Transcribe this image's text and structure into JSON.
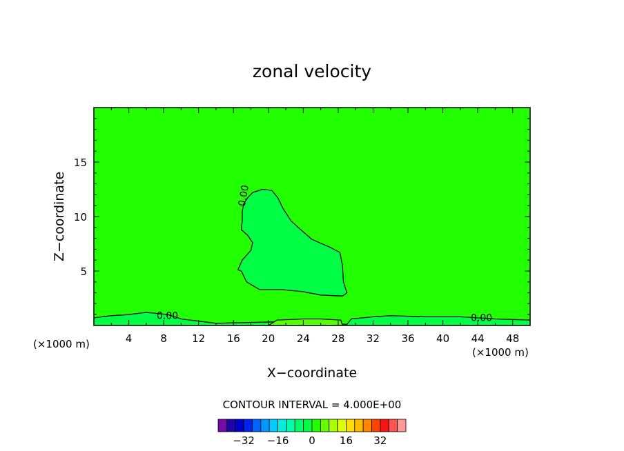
{
  "chart_data": {
    "type": "contour",
    "title": "zonal velocity",
    "xlabel": "X−coordinate",
    "ylabel": "Z−coordinate",
    "x_unit_left": "(×1000 m)",
    "x_unit_right": "(×1000 m)",
    "xlim": [
      0,
      50
    ],
    "ylim": [
      0,
      20
    ],
    "x_ticks": [
      4,
      8,
      12,
      16,
      20,
      24,
      28,
      32,
      36,
      40,
      44,
      48
    ],
    "y_ticks": [
      5,
      10,
      15
    ],
    "background_fill": "#22ff00",
    "contour_labels": [
      {
        "text": "0.00",
        "x": 17.3,
        "y": 10.9
      },
      {
        "text": "0.00",
        "x": 7.2,
        "y": 0.6
      },
      {
        "text": "0.00",
        "x": 43.2,
        "y": 0.4
      }
    ],
    "regions": [
      {
        "level": "-4 to 0",
        "color": "#00ff44",
        "outline": [
          [
            17.0,
            10.5
          ],
          [
            17.2,
            11.2
          ],
          [
            17.6,
            11.7
          ],
          [
            18.2,
            12.2
          ],
          [
            19.3,
            12.5
          ],
          [
            20.4,
            12.4
          ],
          [
            21.1,
            11.7
          ],
          [
            21.7,
            10.7
          ],
          [
            22.6,
            9.6
          ],
          [
            23.7,
            8.8
          ],
          [
            25.0,
            7.9
          ],
          [
            27.0,
            7.2
          ],
          [
            28.2,
            6.7
          ],
          [
            28.5,
            5.5
          ],
          [
            28.6,
            4.0
          ],
          [
            29.0,
            3.0
          ],
          [
            28.5,
            2.7
          ],
          [
            26.0,
            2.8
          ],
          [
            24.0,
            3.1
          ],
          [
            21.5,
            3.3
          ],
          [
            19.0,
            3.3
          ],
          [
            17.5,
            4.0
          ],
          [
            16.9,
            5.0
          ],
          [
            16.5,
            5.1
          ],
          [
            17.0,
            6.0
          ],
          [
            18.0,
            6.9
          ],
          [
            18.2,
            7.6
          ],
          [
            17.6,
            8.3
          ],
          [
            16.9,
            8.8
          ],
          [
            17.0,
            9.6
          ]
        ]
      },
      {
        "level": "0 to 4 (bottom band)",
        "color": "#00ff44",
        "outline": [
          [
            0.0,
            0.0
          ],
          [
            50.0,
            0.0
          ],
          [
            50.0,
            0.5
          ],
          [
            46.0,
            0.6
          ],
          [
            42.0,
            0.8
          ],
          [
            38.0,
            0.8
          ],
          [
            34.0,
            0.9
          ],
          [
            32.0,
            0.8
          ],
          [
            29.5,
            0.6
          ],
          [
            29.0,
            0.1
          ],
          [
            24.0,
            0.4
          ],
          [
            19.0,
            0.3
          ],
          [
            14.0,
            0.2
          ],
          [
            10.0,
            0.6
          ],
          [
            8.5,
            1.0
          ],
          [
            6.0,
            1.2
          ],
          [
            4.0,
            1.0
          ],
          [
            2.0,
            0.9
          ],
          [
            0.0,
            0.7
          ]
        ]
      },
      {
        "level": "4 to 8",
        "color": "#55ff00",
        "outline": [
          [
            20.0,
            0.0
          ],
          [
            28.5,
            0.0
          ],
          [
            28.3,
            0.5
          ],
          [
            26.0,
            0.6
          ],
          [
            24.0,
            0.6
          ],
          [
            21.0,
            0.5
          ]
        ]
      }
    ],
    "contour_interval": "CONTOUR INTERVAL = 4.000E+00",
    "colorbar": {
      "colors": [
        "#7a0aa8",
        "#2200aa",
        "#0000cc",
        "#0022ee",
        "#0066ff",
        "#0099ff",
        "#00ccff",
        "#00eedd",
        "#00ffaa",
        "#00ff66",
        "#00ff44",
        "#22ff00",
        "#66ff00",
        "#aaff00",
        "#ddff00",
        "#ffdd00",
        "#ffbb00",
        "#ff8800",
        "#ff4400",
        "#ff1111",
        "#ff5555",
        "#ff9999"
      ],
      "tick_labels": [
        "−32",
        "−16",
        "0",
        "16",
        "32"
      ],
      "tick_values": [
        -32,
        -16,
        0,
        16,
        32
      ],
      "vmin": -44,
      "vmax": 44
    }
  }
}
